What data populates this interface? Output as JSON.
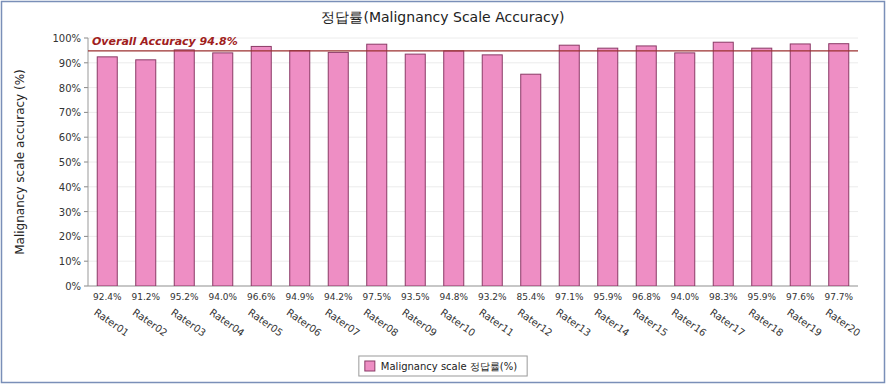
{
  "chart_data": {
    "type": "bar",
    "title": "정답률(Malignancy Scale Accuracy)",
    "y_label": "Malignancy scale accuracy (%)",
    "categories": [
      "Rater01",
      "Rater02",
      "Rater03",
      "Rater04",
      "Rater05",
      "Rater06",
      "Rater07",
      "Rater08",
      "Rater09",
      "Rater10",
      "Rater11",
      "Rater12",
      "Rater13",
      "Rater14",
      "Rater15",
      "Rater16",
      "Rater17",
      "Rater18",
      "Rater19",
      "Rater20"
    ],
    "series": [
      {
        "name": "Malignancy scale 정답률(%)",
        "color": "#ee8ec4",
        "values": [
          92.4,
          91.2,
          95.2,
          94.0,
          96.6,
          94.9,
          94.2,
          97.5,
          93.5,
          94.8,
          93.2,
          85.4,
          97.1,
          95.9,
          96.8,
          94.0,
          98.3,
          95.9,
          97.6,
          97.7
        ],
        "value_labels": [
          "92.4%",
          "91.2%",
          "95.2%",
          "94.0%",
          "96.6%",
          "94.9%",
          "94.2%",
          "97.5%",
          "93.5%",
          "94.8%",
          "93.2%",
          "85.4%",
          "97.1%",
          "95.9%",
          "96.8%",
          "94.0%",
          "98.3%",
          "95.9%",
          "97.6%",
          "97.7%"
        ]
      }
    ],
    "annotations": [
      {
        "text": "Overall Accuracy 94.8%",
        "y": 94.8
      }
    ],
    "ylim": [
      0,
      100
    ],
    "yticks": [
      {
        "value": 0,
        "label": "0%"
      },
      {
        "value": 10,
        "label": "10%"
      },
      {
        "value": 20,
        "label": "20%"
      },
      {
        "value": 30,
        "label": "30%"
      },
      {
        "value": 40,
        "label": "40%"
      },
      {
        "value": 50,
        "label": "50%"
      },
      {
        "value": 60,
        "label": "60%"
      },
      {
        "value": 70,
        "label": "70%"
      },
      {
        "value": 80,
        "label": "80%"
      },
      {
        "value": 90,
        "label": "90%"
      },
      {
        "value": 100,
        "label": "100%"
      }
    ],
    "grid": true,
    "data_labels": true,
    "legend": "bottom"
  }
}
